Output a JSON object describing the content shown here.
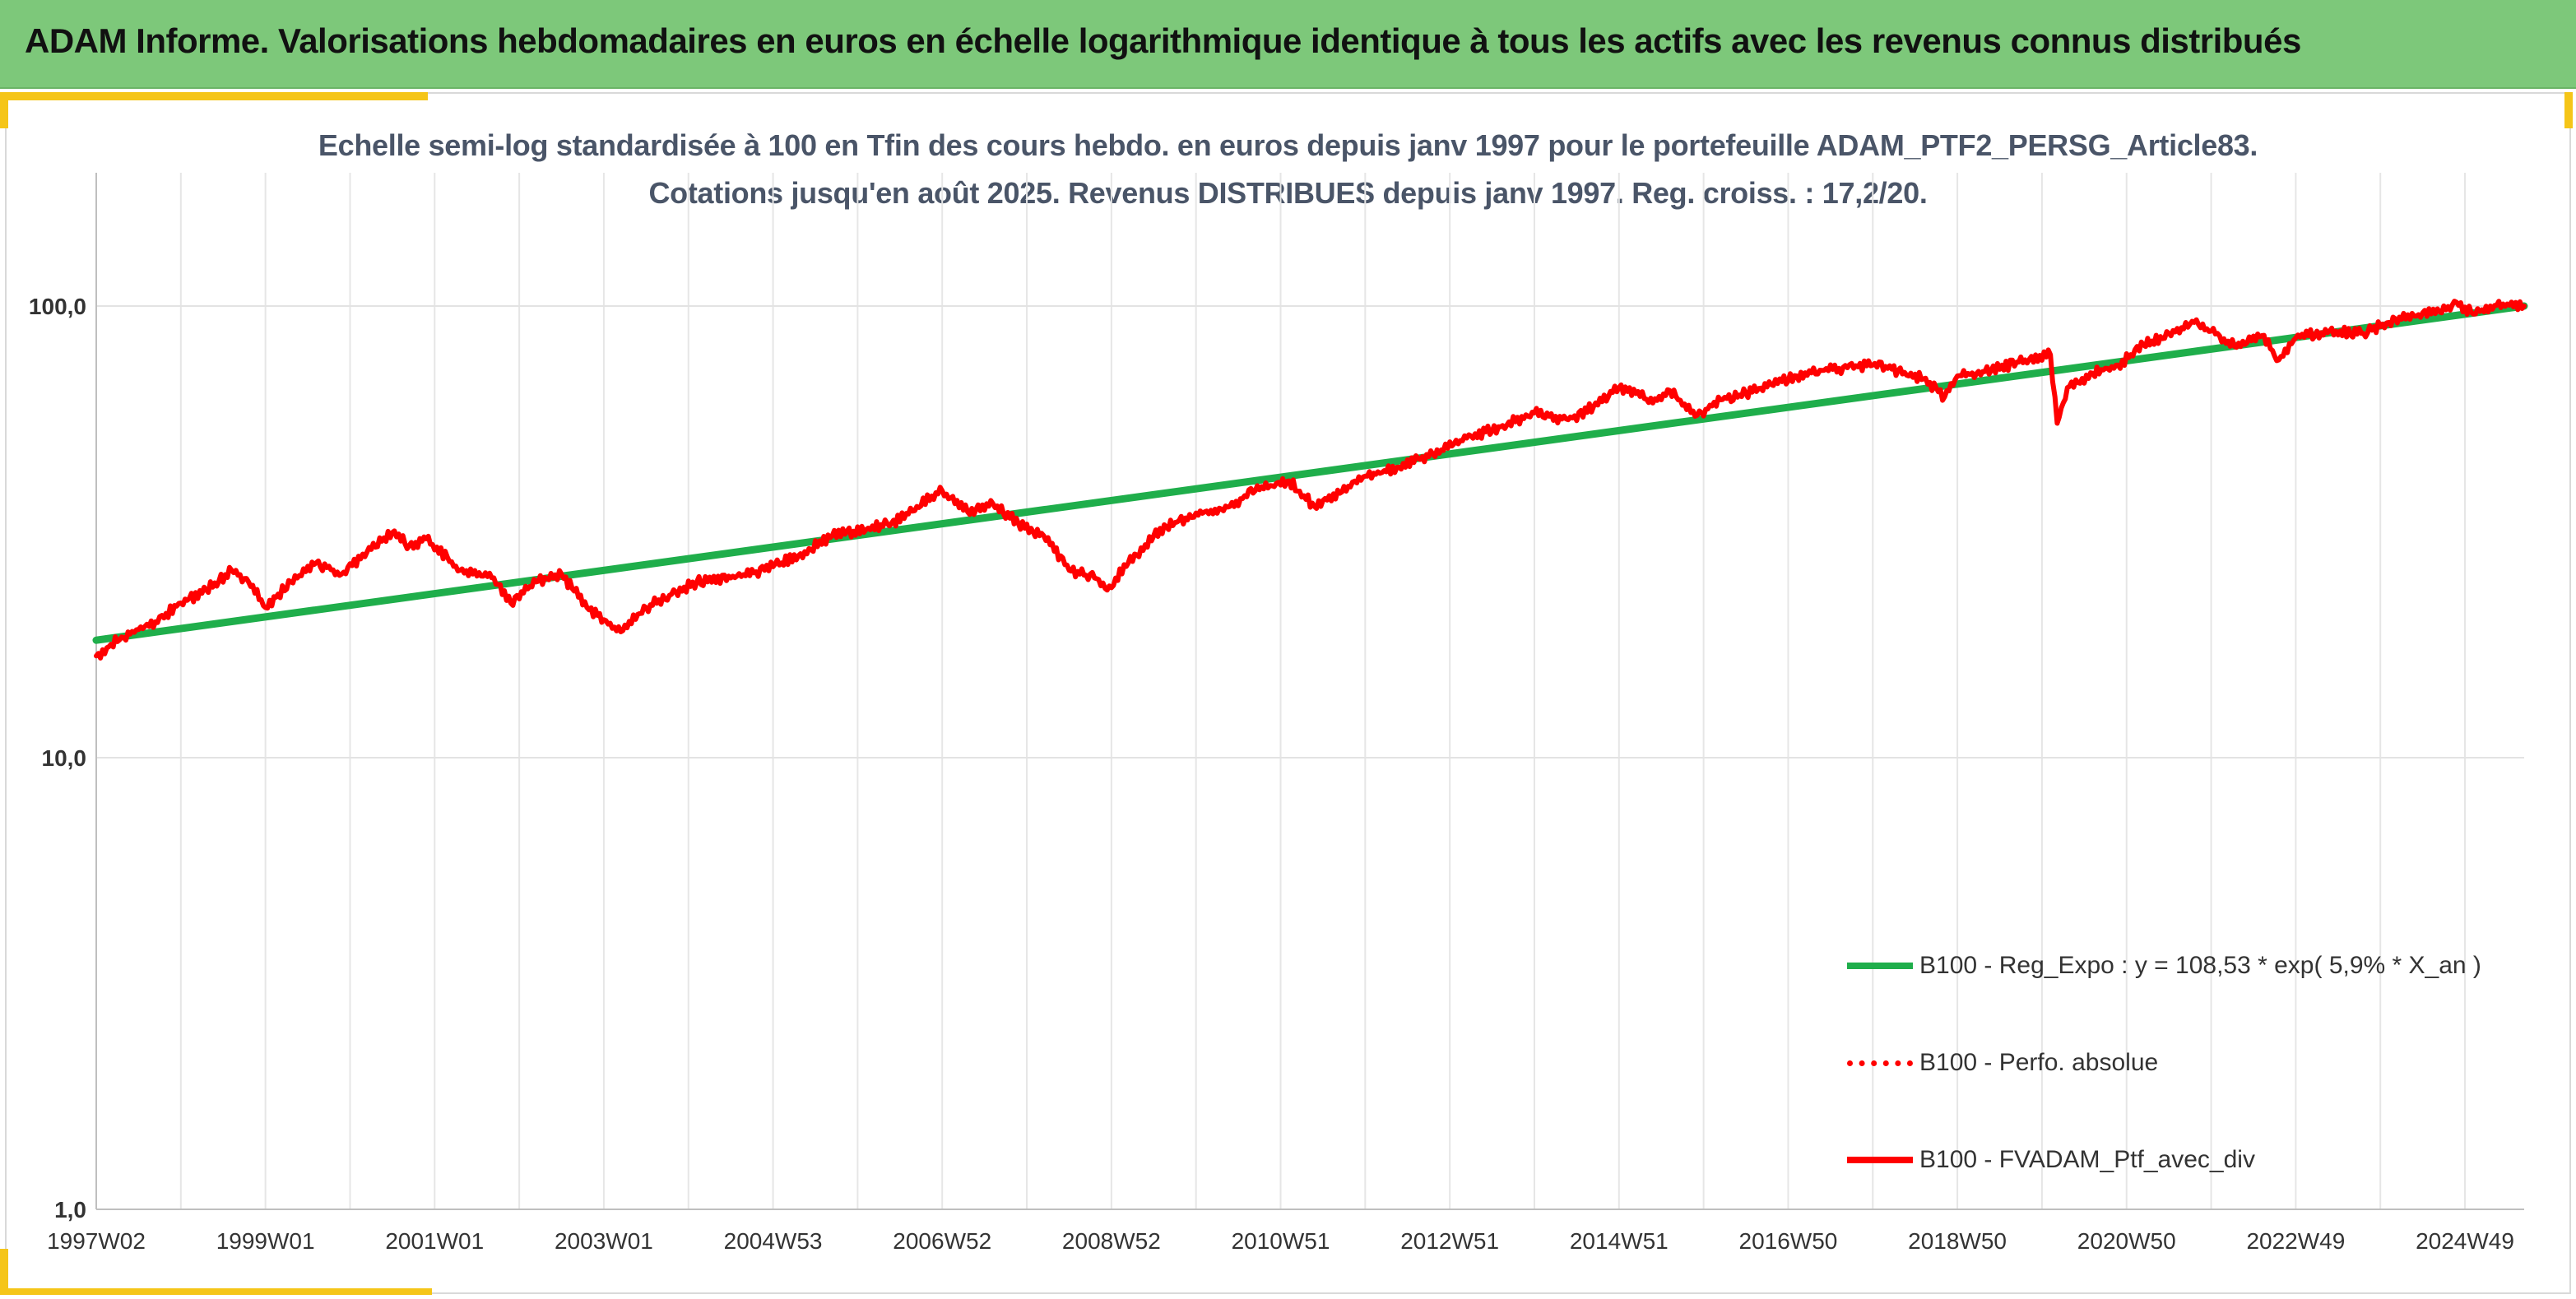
{
  "header": {
    "title": "ADAM Informe. Valorisations hebdomadaires en euros en échelle logarithmique identique à tous les actifs avec les revenus connus distribués"
  },
  "chart_data": {
    "type": "line",
    "title": "Echelle semi-log standardisée à 100 en Tfin des cours hebdo. en euros depuis janv 1997 pour le portefeuille ADAM_PTF2_PERSG_Article83.",
    "subtitle": "Cotations jusqu'en août 2025. Revenus DISTRIBUES depuis janv 1997. Reg. croiss. : 17,2/20.",
    "y_scale": "log",
    "ylim": [
      1,
      200
    ],
    "xlim": [
      1997.0,
      2025.7
    ],
    "y_ticks": [
      {
        "value": 1,
        "label": "1,0"
      },
      {
        "value": 10,
        "label": "10,0"
      },
      {
        "value": 100,
        "label": "100,0"
      }
    ],
    "x_ticks": [
      {
        "value": 1997.0,
        "label": "1997W02"
      },
      {
        "value": 1999.0,
        "label": "1999W01"
      },
      {
        "value": 2001.0,
        "label": "2001W01"
      },
      {
        "value": 2003.0,
        "label": "2003W01"
      },
      {
        "value": 2005.0,
        "label": "2004W53"
      },
      {
        "value": 2007.0,
        "label": "2006W52"
      },
      {
        "value": 2009.0,
        "label": "2008W52"
      },
      {
        "value": 2011.0,
        "label": "2010W51"
      },
      {
        "value": 2013.0,
        "label": "2012W51"
      },
      {
        "value": 2015.0,
        "label": "2014W51"
      },
      {
        "value": 2017.0,
        "label": "2016W50"
      },
      {
        "value": 2019.0,
        "label": "2018W50"
      },
      {
        "value": 2021.0,
        "label": "2020W50"
      },
      {
        "value": 2023.0,
        "label": "2022W49"
      },
      {
        "value": 2025.0,
        "label": "2024W49"
      }
    ],
    "grid": {
      "vertical": true,
      "horizontal": true
    },
    "legend_position": "bottom-right",
    "series": [
      {
        "name": "B100 - Reg_Expo : y = 108,53 * exp( 5,9% *  X_an )",
        "color": "#1fae4b",
        "style": "solid",
        "x": [
          1997.0,
          2025.7
        ],
        "y": [
          18.2,
          100.0
        ]
      },
      {
        "name": "B100 - Perfo. absolue",
        "color": "#ff0000",
        "style": "dotted",
        "x": [],
        "y": []
      },
      {
        "name": "B100 - FVADAM_Ptf_avec_div",
        "color": "#ff0000",
        "style": "solid",
        "x": [
          1997.0,
          1997.3,
          1997.7,
          1998.0,
          1998.3,
          1998.6,
          1998.8,
          1999.0,
          1999.3,
          1999.6,
          1999.9,
          2000.2,
          2000.5,
          2000.7,
          2000.9,
          2001.3,
          2001.7,
          2001.9,
          2002.2,
          2002.5,
          2002.8,
          2003.2,
          2003.5,
          2003.8,
          2004.1,
          2004.5,
          2004.9,
          2005.3,
          2005.7,
          2006.1,
          2006.4,
          2006.7,
          2007.0,
          2007.3,
          2007.6,
          2007.9,
          2008.2,
          2008.5,
          2008.8,
          2008.95,
          2009.2,
          2009.5,
          2009.8,
          2010.1,
          2010.4,
          2010.7,
          2010.9,
          2011.1,
          2011.4,
          2011.7,
          2012.0,
          2012.4,
          2012.8,
          2013.2,
          2013.6,
          2014.0,
          2014.4,
          2014.7,
          2015.0,
          2015.2,
          2015.4,
          2015.6,
          2015.9,
          2016.2,
          2016.5,
          2016.8,
          2017.1,
          2017.4,
          2017.7,
          2018.0,
          2018.3,
          2018.6,
          2018.85,
          2019.0,
          2019.4,
          2019.8,
          2020.1,
          2020.18,
          2020.3,
          2020.6,
          2020.9,
          2021.2,
          2021.5,
          2021.8,
          2022.0,
          2022.3,
          2022.6,
          2022.8,
          2023.0,
          2023.4,
          2023.8,
          2024.1,
          2024.4,
          2024.7,
          2024.9,
          2025.1,
          2025.3,
          2025.5,
          2025.7
        ],
        "y": [
          16.8,
          18.5,
          20.0,
          22.0,
          23.5,
          26.0,
          24.5,
          21.5,
          24.5,
          27.0,
          25.5,
          28.5,
          31.5,
          29.5,
          30.5,
          26.0,
          25.0,
          22.0,
          24.5,
          25.5,
          21.5,
          19.0,
          21.5,
          23.0,
          24.5,
          25.0,
          26.0,
          28.0,
          31.0,
          32.0,
          33.0,
          36.0,
          39.0,
          35.0,
          36.5,
          33.0,
          31.0,
          26.0,
          25.0,
          23.5,
          27.0,
          31.0,
          33.5,
          35.0,
          36.0,
          39.0,
          40.0,
          41.0,
          36.0,
          38.5,
          42.0,
          44.0,
          47.0,
          51.0,
          54.0,
          58.0,
          56.0,
          60.0,
          66.0,
          64.0,
          61.0,
          65.0,
          57.0,
          62.0,
          64.0,
          67.0,
          70.0,
          72.0,
          73.0,
          74.0,
          72.0,
          69.0,
          63.0,
          70.0,
          72.0,
          76.0,
          78.0,
          55.0,
          66.0,
          71.0,
          74.0,
          82.0,
          87.0,
          92.0,
          88.0,
          81.0,
          86.0,
          76.0,
          85.0,
          88.0,
          87.0,
          92.0,
          95.0,
          97.0,
          102.0,
          96.0,
          100.0,
          101.0,
          100.0
        ]
      }
    ]
  }
}
